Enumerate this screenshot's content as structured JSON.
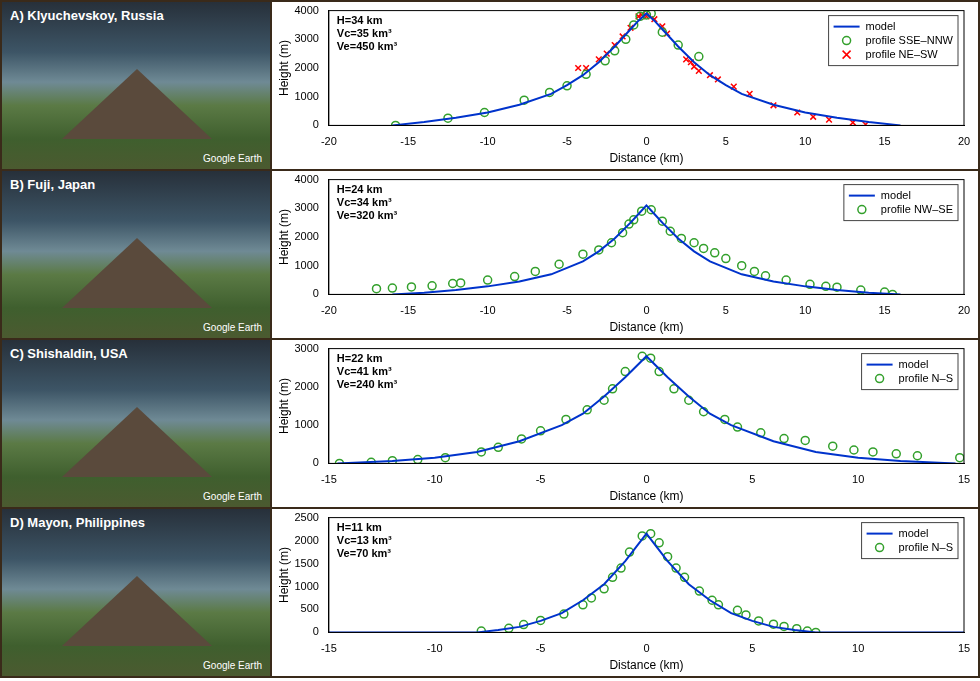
{
  "chart_data": [
    {
      "type": "scatter",
      "title": "A) Klyuchevskoy, Russia",
      "image_credit": "Google Earth",
      "annotations": [
        "H=34 km",
        "Vc=35 km³",
        "Ve=450 km³"
      ],
      "x_label": "Distance (km)",
      "y_label": "Height (m)",
      "xlim": [
        -20,
        20
      ],
      "xticks": [
        -20,
        -15,
        -10,
        -5,
        0,
        5,
        10,
        15,
        20
      ],
      "ylim": [
        0,
        4000
      ],
      "yticks": [
        0,
        1000,
        2000,
        3000,
        4000
      ],
      "grid": false,
      "legend": "upper right",
      "series": [
        {
          "name": "model",
          "color": "#0033cc",
          "type": "line",
          "marker": "none",
          "line_style": "solid",
          "x": [
            -16,
            -14,
            -12,
            -10,
            -8,
            -6,
            -5,
            -4,
            -3,
            -2,
            -1,
            -0.5,
            0,
            0.5,
            1,
            2,
            3,
            4,
            5,
            6,
            8,
            10,
            12,
            14,
            16
          ],
          "values": [
            0,
            120,
            270,
            450,
            720,
            1100,
            1400,
            1750,
            2200,
            2750,
            3350,
            3650,
            3900,
            3650,
            3350,
            2750,
            2200,
            1750,
            1400,
            1100,
            720,
            450,
            270,
            120,
            0
          ]
        },
        {
          "name": "profile SSE–NNW",
          "color": "#33a02c",
          "type": "scatter",
          "marker": "circle",
          "x": [
            -15.8,
            -12.5,
            -10.2,
            -7.7,
            -6.1,
            -5,
            -3.8,
            -2.6,
            -2,
            -1.3,
            -0.8,
            -0.4,
            0,
            0.3,
            1,
            2,
            3.3
          ],
          "values": [
            0,
            250,
            450,
            880,
            1150,
            1380,
            1780,
            2250,
            2600,
            3000,
            3500,
            3800,
            3850,
            3900,
            3250,
            2800,
            2400
          ]
        },
        {
          "name": "profile NE–SW",
          "color": "#ff0000",
          "type": "scatter",
          "marker": "x",
          "x": [
            -4.3,
            -3.8,
            -3,
            -2.5,
            -2,
            -1.5,
            -1,
            -0.5,
            -0.3,
            0,
            0.5,
            1,
            1.3,
            2.5,
            2.8,
            3,
            3.3,
            4,
            4.5,
            5.5,
            6.5,
            8,
            9.5,
            10.5,
            11.5,
            13,
            13.8
          ],
          "values": [
            2000,
            2000,
            2300,
            2500,
            2800,
            3100,
            3400,
            3800,
            3850,
            3800,
            3700,
            3450,
            3200,
            2300,
            2200,
            2050,
            1900,
            1750,
            1600,
            1350,
            1100,
            700,
            450,
            300,
            200,
            100,
            30
          ]
        }
      ]
    },
    {
      "type": "scatter",
      "title": "B) Fuji, Japan",
      "image_credit": "Google Earth",
      "annotations": [
        "H=24 km",
        "Vc=34 km³",
        "Ve=320 km³"
      ],
      "x_label": "Distance (km)",
      "y_label": "Height (m)",
      "xlim": [
        -20,
        20
      ],
      "xticks": [
        -20,
        -15,
        -10,
        -5,
        0,
        5,
        10,
        15,
        20
      ],
      "ylim": [
        0,
        4000
      ],
      "yticks": [
        0,
        1000,
        2000,
        3000,
        4000
      ],
      "grid": false,
      "legend": "upper right",
      "series": [
        {
          "name": "model",
          "color": "#0033cc",
          "type": "line",
          "marker": "none",
          "line_style": "solid",
          "x": [
            -16,
            -14,
            -12,
            -10,
            -8,
            -6,
            -4,
            -3,
            -2,
            -1,
            -0.5,
            0,
            0.5,
            1,
            2,
            3,
            4,
            6,
            8,
            10,
            12,
            14,
            16
          ],
          "values": [
            0,
            60,
            150,
            280,
            450,
            700,
            1150,
            1500,
            1950,
            2500,
            2800,
            3100,
            2800,
            2500,
            1950,
            1500,
            1150,
            700,
            450,
            280,
            150,
            60,
            0
          ]
        },
        {
          "name": "profile NW–SE",
          "color": "#33a02c",
          "type": "scatter",
          "marker": "circle",
          "x": [
            -17,
            -16,
            -14.8,
            -13.5,
            -12.2,
            -11.7,
            -10,
            -8.3,
            -7,
            -5.5,
            -4,
            -3,
            -2.2,
            -1.5,
            -1.1,
            -0.8,
            -0.3,
            0.3,
            1,
            1.5,
            2.2,
            3,
            3.6,
            4.3,
            5,
            6,
            6.8,
            7.5,
            8.8,
            10.3,
            11.3,
            12,
            13.5,
            15,
            15.5
          ],
          "values": [
            200,
            220,
            260,
            300,
            380,
            400,
            500,
            620,
            800,
            1050,
            1400,
            1550,
            1800,
            2150,
            2450,
            2600,
            2900,
            2950,
            2550,
            2200,
            1950,
            1800,
            1600,
            1450,
            1250,
            1000,
            800,
            650,
            500,
            350,
            280,
            250,
            150,
            80,
            0
          ]
        }
      ]
    },
    {
      "type": "scatter",
      "title": "C) Shishaldin, USA",
      "image_credit": "Google Earth",
      "annotations": [
        "H=22 km",
        "Vc=41 km³",
        "Ve=240 km³"
      ],
      "x_label": "Distance (km)",
      "y_label": "Height (m)",
      "xlim": [
        -15,
        15
      ],
      "xticks": [
        -15,
        -10,
        -5,
        0,
        5,
        10,
        15
      ],
      "ylim": [
        0,
        3000
      ],
      "yticks": [
        0,
        1000,
        2000,
        3000
      ],
      "grid": false,
      "legend": "upper right",
      "series": [
        {
          "name": "model",
          "color": "#0033cc",
          "type": "line",
          "marker": "none",
          "line_style": "solid",
          "x": [
            -14.6,
            -12,
            -10,
            -8,
            -6,
            -4,
            -3,
            -2,
            -1,
            0,
            1,
            2,
            3,
            4,
            6,
            8,
            10,
            12,
            14.6
          ],
          "values": [
            0,
            60,
            150,
            300,
            580,
            1000,
            1300,
            1750,
            2250,
            2800,
            2250,
            1750,
            1300,
            1000,
            580,
            300,
            150,
            60,
            0
          ]
        },
        {
          "name": "profile N–S",
          "color": "#33a02c",
          "type": "scatter",
          "marker": "circle",
          "x": [
            -14.5,
            -13,
            -12,
            -10.8,
            -9.5,
            -7.8,
            -7,
            -5.9,
            -5,
            -3.8,
            -2.8,
            -2,
            -1.6,
            -1,
            -0.2,
            0.2,
            0.6,
            1.3,
            2,
            2.7,
            3.7,
            4.3,
            5.4,
            6.5,
            7.5,
            8.8,
            9.8,
            10.7,
            11.8,
            12.8,
            14.8
          ],
          "values": [
            0,
            30,
            70,
            100,
            150,
            300,
            420,
            640,
            850,
            1150,
            1400,
            1650,
            1950,
            2400,
            2800,
            2750,
            2400,
            1950,
            1650,
            1350,
            1150,
            950,
            800,
            650,
            600,
            450,
            350,
            300,
            250,
            200,
            150
          ]
        }
      ]
    },
    {
      "type": "scatter",
      "title": "D) Mayon, Philippines",
      "image_credit": "Google Earth",
      "annotations": [
        "H=11 km",
        "Vc=13 km³",
        "Ve=70 km³"
      ],
      "x_label": "Distance (km)",
      "y_label": "Height (m)",
      "xlim": [
        -15,
        15
      ],
      "xticks": [
        -15,
        -10,
        -5,
        0,
        5,
        10,
        15
      ],
      "ylim": [
        0,
        2500
      ],
      "yticks": [
        0,
        500,
        1000,
        1500,
        2000,
        2500
      ],
      "grid": false,
      "legend": "upper right",
      "series": [
        {
          "name": "model",
          "color": "#0033cc",
          "type": "line",
          "marker": "none",
          "line_style": "solid",
          "x": [
            -15,
            -10,
            -8,
            -7,
            -6,
            -5,
            -4,
            -3,
            -2,
            -1,
            -0.5,
            0,
            0.5,
            1,
            2,
            3,
            4,
            5,
            6,
            7,
            8,
            10,
            15
          ],
          "values": [
            0,
            0,
            0,
            50,
            120,
            250,
            420,
            700,
            1050,
            1550,
            1850,
            2150,
            1850,
            1550,
            1050,
            700,
            420,
            250,
            120,
            50,
            0,
            0,
            0
          ]
        },
        {
          "name": "profile N–S",
          "color": "#33a02c",
          "type": "scatter",
          "marker": "circle",
          "x": [
            -7.8,
            -6.5,
            -5.8,
            -5,
            -3.9,
            -3,
            -2.6,
            -2,
            -1.6,
            -1.2,
            -0.8,
            -0.2,
            0.2,
            0.6,
            1,
            1.4,
            1.8,
            2.5,
            3.1,
            3.4,
            4.3,
            4.7,
            5.3,
            6,
            6.5,
            7.1,
            7.6,
            8
          ],
          "values": [
            30,
            90,
            170,
            260,
            400,
            600,
            750,
            950,
            1200,
            1400,
            1750,
            2100,
            2150,
            1950,
            1650,
            1400,
            1200,
            900,
            700,
            600,
            480,
            380,
            250,
            180,
            130,
            80,
            30,
            0
          ]
        }
      ]
    }
  ]
}
